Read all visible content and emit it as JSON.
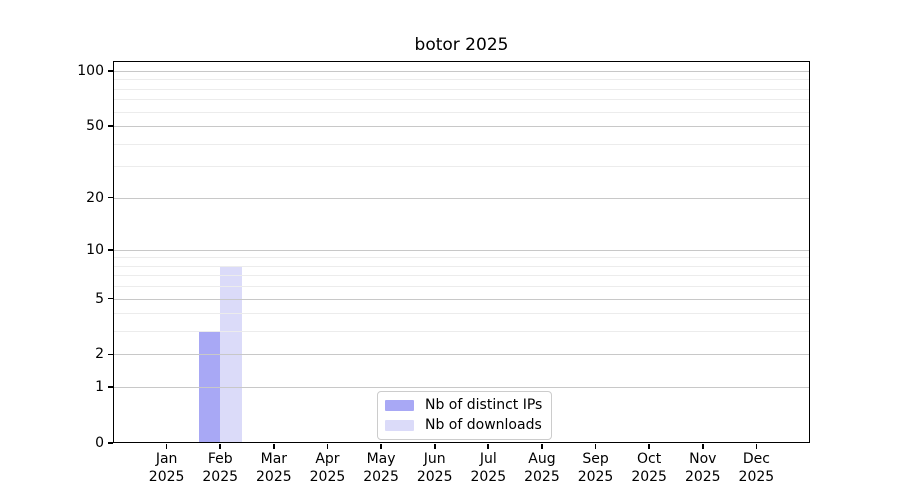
{
  "window": {
    "background": "#ffffff"
  },
  "chart_data": {
    "type": "bar",
    "title": "botor 2025",
    "categories": [
      "Jan",
      "Feb",
      "Mar",
      "Apr",
      "May",
      "Jun",
      "Jul",
      "Aug",
      "Sep",
      "Oct",
      "Nov",
      "Dec"
    ],
    "category_year": "2025",
    "series": [
      {
        "name": "Nb of distinct IPs",
        "color": "#a8a8f5",
        "values": [
          0,
          3,
          0,
          0,
          0,
          0,
          0,
          0,
          0,
          0,
          0,
          0
        ]
      },
      {
        "name": "Nb of downloads",
        "color": "#dbdbf9",
        "values": [
          0,
          8,
          0,
          0,
          0,
          0,
          0,
          0,
          0,
          0,
          0,
          0
        ]
      }
    ],
    "xlabel": "",
    "ylabel": "",
    "yscale": "log1p",
    "ylim": [
      0,
      100
    ],
    "y_major_ticks": [
      0,
      1,
      2,
      5,
      10,
      20,
      50,
      100
    ],
    "y_minor_ticks": [
      3,
      4,
      6,
      7,
      8,
      9,
      30,
      40,
      60,
      70,
      80,
      90
    ],
    "grid": "horizontal-major-and-minor",
    "legend_position": "lower-center",
    "colors": {
      "grid_major": "#c8c8c8",
      "grid_minor": "#ececec",
      "axis": "#000000",
      "legend_border": "#cccccc"
    }
  }
}
